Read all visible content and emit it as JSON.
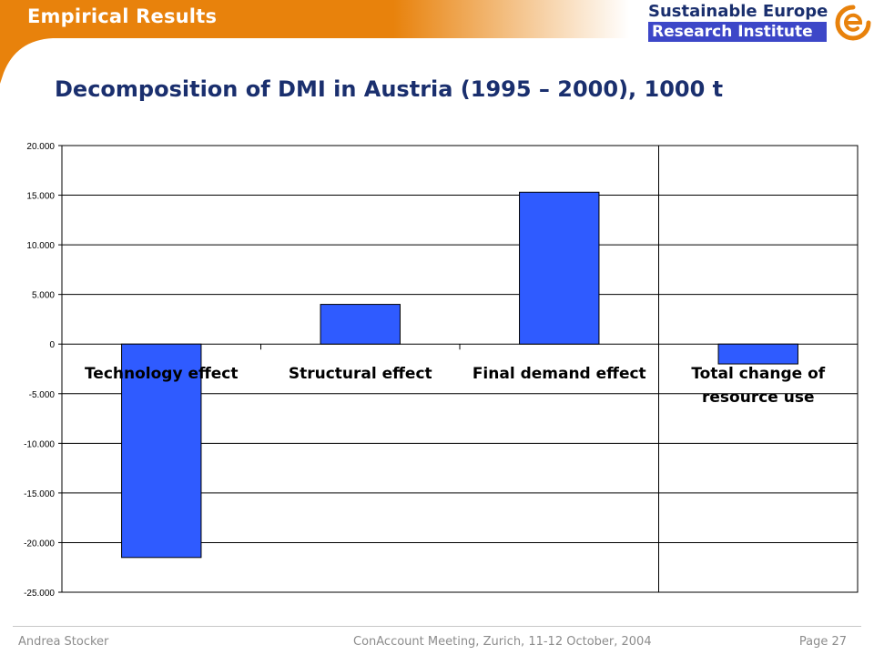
{
  "header": {
    "section_title": "Empirical Results",
    "logo_line1": "Sustainable Europe",
    "logo_line2": "Research Institute",
    "orange": "#e8820c",
    "navy": "#1a2f6e",
    "logo_blue": "#3d47c8",
    "logo_icon": "spiral-e-icon"
  },
  "slide_title": "Decomposition of DMI in Austria (1995 – 2000), 1000 t",
  "chart_data": {
    "type": "bar",
    "categories": [
      "Technology effect",
      "Structural effect",
      "Final demand effect",
      "Total change of resource use"
    ],
    "category_label_lines": [
      [
        "Technology effect"
      ],
      [
        "Structural effect"
      ],
      [
        "Final demand effect"
      ],
      [
        "Total change of",
        "resource use"
      ]
    ],
    "values": [
      -21500,
      4000,
      15300,
      -2000
    ],
    "ylim": [
      -25000,
      20000
    ],
    "yticks": [
      20000,
      15000,
      10000,
      5000,
      0,
      -5000,
      -10000,
      -15000,
      -20000,
      -25000
    ],
    "ytick_labels": [
      "20.000",
      "15.000",
      "10.000",
      "5.000",
      "0",
      "-5.000",
      "-10.000",
      "-15.000",
      "-20.000",
      "-25.000"
    ],
    "grid": true,
    "separator_after_category": 3,
    "bar_color": "#2f5bff"
  },
  "footer": {
    "author": "Andrea Stocker",
    "meeting": "ConAccount Meeting, Zurich, 11-12 October, 2004",
    "page": "Page 27"
  }
}
